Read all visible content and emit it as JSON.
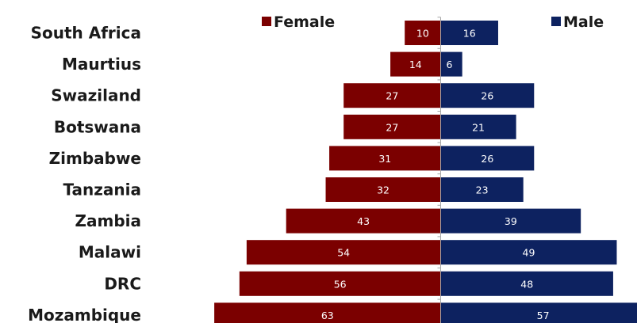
{
  "chart_data": {
    "type": "bar",
    "orientation": "horizontal-diverging",
    "categories": [
      "South Africa",
      "Maurtius",
      "Swaziland",
      "Botswana",
      "Zimbabwe",
      "Tanzania",
      "Zambia",
      "Malawi",
      "DRC",
      "Mozambique"
    ],
    "series": [
      {
        "name": "Female",
        "color": "#7b0000",
        "values": [
          10,
          14,
          27,
          27,
          31,
          32,
          43,
          54,
          56,
          63
        ]
      },
      {
        "name": "Male",
        "color": "#0d2260",
        "values": [
          16,
          6,
          26,
          21,
          26,
          23,
          39,
          49,
          48,
          57
        ]
      }
    ],
    "legend_position": "top",
    "grid": false,
    "axis_color": "#a6a6a6"
  }
}
